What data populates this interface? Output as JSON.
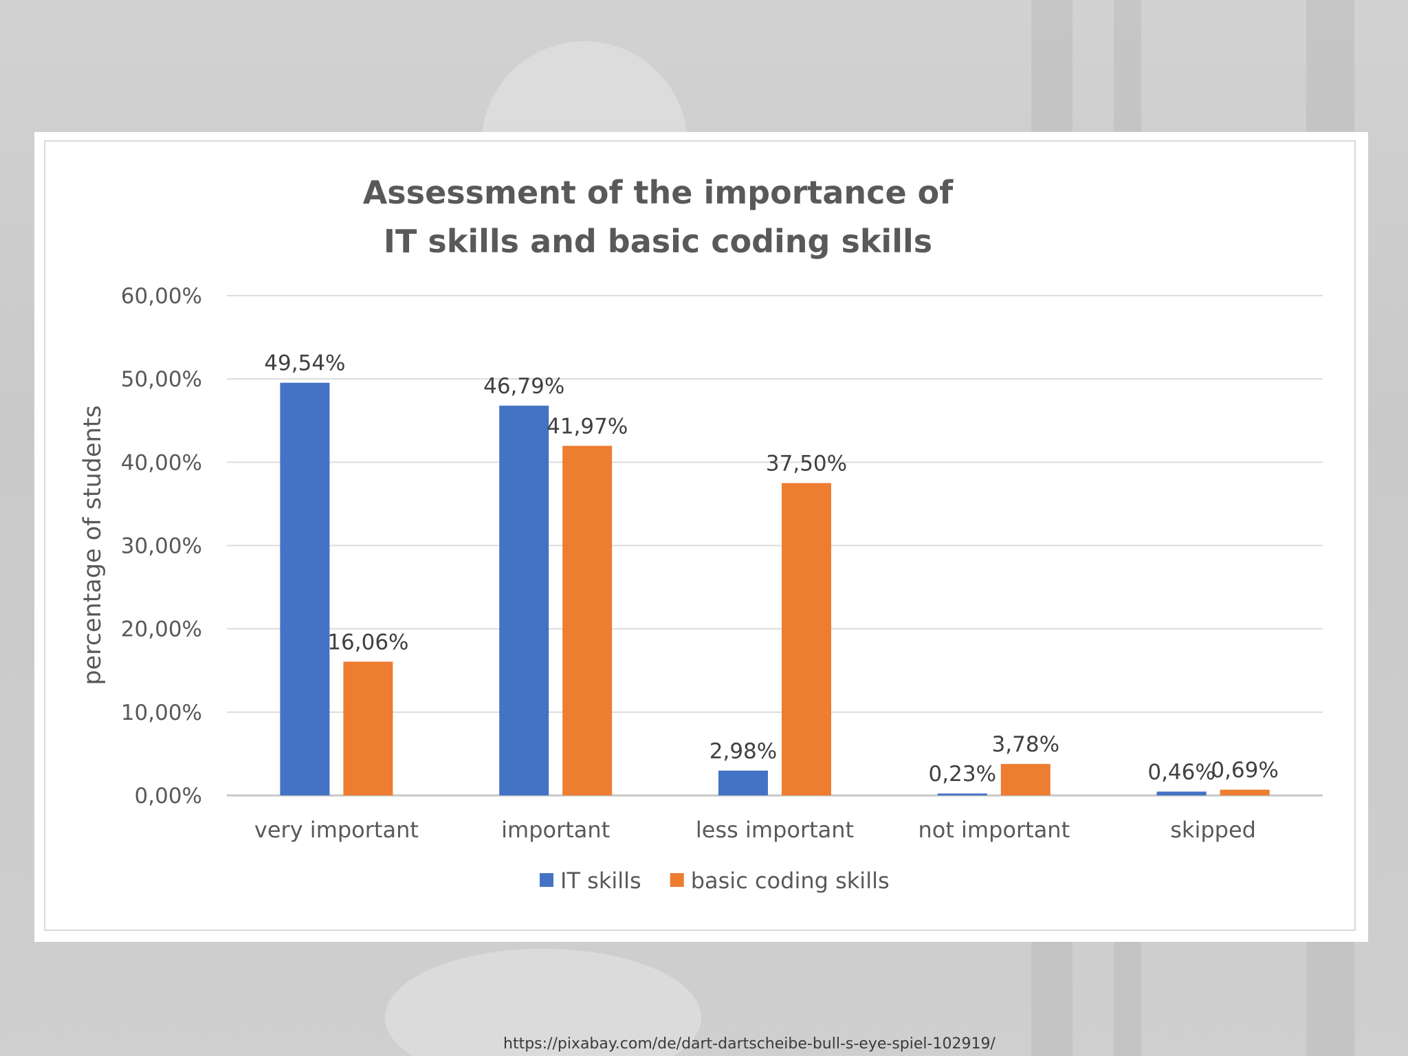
{
  "chart_data": {
    "type": "bar",
    "title_lines": [
      "Assessment of the importance of",
      "IT skills and basic coding skills"
    ],
    "ylabel": "percentage of students",
    "ylim": [
      0,
      60
    ],
    "yticks": [
      0,
      10,
      20,
      30,
      40,
      50,
      60
    ],
    "ytick_labels": [
      "0,00%",
      "10,00%",
      "20,00%",
      "30,00%",
      "40,00%",
      "50,00%",
      "60,00%"
    ],
    "categories": [
      "very important",
      "important",
      "less important",
      "not important",
      "skipped"
    ],
    "series": [
      {
        "name": "IT skills",
        "color": "#4472c4",
        "values": [
          49.54,
          46.79,
          2.98,
          0.23,
          0.46
        ],
        "labels": [
          "49,54%",
          "46,79%",
          "2,98%",
          "0,23%",
          "0,46%"
        ]
      },
      {
        "name": "basic coding skills",
        "color": "#ed7d31",
        "values": [
          16.06,
          41.97,
          37.5,
          3.78,
          0.69
        ],
        "labels": [
          "16,06%",
          "41,97%",
          "37,50%",
          "3,78%",
          "0,69%"
        ]
      }
    ],
    "grid": true,
    "legend_position": "bottom"
  },
  "credit": "https://pixabay.com/de/dart-dartscheibe-bull-s-eye-spiel-102919/"
}
